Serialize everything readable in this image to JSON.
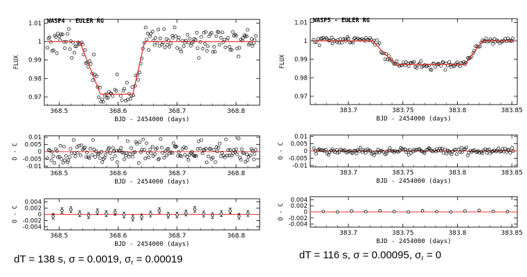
{
  "chart_data": [
    {
      "id": "wasp4-flux",
      "type": "scatter",
      "title": "WASP4 - EULER RG",
      "xlabel": "BJD - 2454000 (days)",
      "ylabel": "FLUX",
      "xlim": [
        368.475,
        368.84
      ],
      "ylim": [
        0.9655,
        1.012
      ],
      "xticks": [
        368.5,
        368.6,
        368.7,
        368.8
      ],
      "xticklabels": [
        "368.5",
        "368.6",
        "368.7",
        "368.8"
      ],
      "yticks": [
        0.97,
        0.98,
        0.99,
        1.0,
        1.01
      ],
      "yticklabels": [
        "0.97",
        "0.98",
        "0.99",
        "1",
        "1.01"
      ],
      "model": {
        "color": "#e8302a",
        "baseline": 1.0,
        "depth": 0.0285,
        "t1": 368.535,
        "t2": 368.57,
        "t3": 368.625,
        "t4": 368.645,
        "x_start": 368.48,
        "x_end": 368.835
      },
      "series": [
        {
          "name": "data",
          "x_start": 368.48,
          "x_end": 368.835,
          "n": 180,
          "scatter": 0.0035,
          "seed": 11
        }
      ]
    },
    {
      "id": "wasp4-resid",
      "type": "scatter",
      "ylabel": "O - C",
      "xlabel": "BJD - 2454000 (days)",
      "xlim": [
        368.475,
        368.84
      ],
      "ylim": [
        -0.011,
        0.011
      ],
      "xticks": [
        368.5,
        368.6,
        368.7,
        368.8
      ],
      "xticklabels": [
        "368.5",
        "368.6",
        "368.7",
        "368.8"
      ],
      "yticks": [
        -0.01,
        -0.005,
        0,
        0.005,
        0.01
      ],
      "yticklabels": [
        "-0.01",
        "-0.005",
        "0",
        "0.005",
        "0.01"
      ],
      "zero_line": 0,
      "series": [
        {
          "name": "residuals",
          "x_start": 368.48,
          "x_end": 368.835,
          "n": 180,
          "scatter": 0.0035,
          "seed": 23
        }
      ]
    },
    {
      "id": "wasp4-binned",
      "type": "scatter",
      "ylabel": "O - C",
      "xlabel": "BJD - 2454000 (days)",
      "xlim": [
        368.475,
        368.84
      ],
      "ylim": [
        -0.005,
        0.005
      ],
      "xticks": [
        368.5,
        368.6,
        368.7,
        368.8
      ],
      "xticklabels": [
        "368.5",
        "368.6",
        "368.7",
        "368.8"
      ],
      "yticks": [
        -0.004,
        -0.002,
        0,
        0.002,
        0.004
      ],
      "yticklabels": [
        "-0.004",
        "-0.002",
        "0",
        "0.002",
        "0.004"
      ],
      "zero_line": 0,
      "binned": {
        "x": [
          368.49,
          368.505,
          368.52,
          368.535,
          368.55,
          368.565,
          368.58,
          368.595,
          368.61,
          368.625,
          368.64,
          368.655,
          368.67,
          368.685,
          368.7,
          368.715,
          368.73,
          368.745,
          368.76,
          368.775,
          368.79,
          368.805,
          368.82
        ],
        "y": [
          -0.0006,
          0.0012,
          0.0015,
          0.0002,
          -0.0004,
          0.0008,
          0.0002,
          0.0006,
          -0.0002,
          -0.0012,
          -0.0008,
          0.0001,
          0.0012,
          -0.0003,
          -0.0002,
          0.0004,
          0.0016,
          0.0001,
          -0.0004,
          0.0002,
          0.0011,
          -0.0006,
          0.0003
        ],
        "err": 0.0009
      }
    },
    {
      "id": "wasp5-flux",
      "type": "scatter",
      "title": "WASP5 - EULER RG",
      "xlabel": "BJD - 2454000 (days)",
      "ylabel": "FLUX",
      "xlim": [
        383.665,
        383.855
      ],
      "ylim": [
        0.9655,
        1.012
      ],
      "xticks": [
        383.7,
        383.75,
        383.8,
        383.85
      ],
      "xticklabels": [
        "383.7",
        "383.75",
        "383.8",
        "383.85"
      ],
      "yticks": [
        0.97,
        0.98,
        0.99,
        1.0,
        1.01
      ],
      "yticklabels": [
        "0.97",
        "0.98",
        "0.99",
        "1",
        "1.01"
      ],
      "model": {
        "color": "#e8302a",
        "baseline": 1.0,
        "depth": 0.0128,
        "t1": 383.722,
        "t2": 383.743,
        "t3": 383.807,
        "t4": 383.823,
        "x_start": 383.668,
        "x_end": 383.852
      },
      "series": [
        {
          "name": "data",
          "x_start": 383.668,
          "x_end": 383.852,
          "n": 150,
          "scatter": 0.0012,
          "seed": 37
        }
      ]
    },
    {
      "id": "wasp5-resid",
      "type": "scatter",
      "ylabel": "O - C",
      "xlabel": "BJD - 2454000 (days)",
      "xlim": [
        383.665,
        383.855
      ],
      "ylim": [
        -0.011,
        0.011
      ],
      "xticks": [
        383.7,
        383.75,
        383.8,
        383.85
      ],
      "xticklabels": [
        "383.7",
        "383.75",
        "383.8",
        "383.85"
      ],
      "yticks": [
        -0.01,
        -0.005,
        0,
        0.005,
        0.01
      ],
      "yticklabels": [
        "-0.01",
        "-0.005",
        "0",
        "0.005",
        "0.01"
      ],
      "zero_line": 0,
      "series": [
        {
          "name": "residuals",
          "x_start": 383.668,
          "x_end": 383.852,
          "n": 150,
          "scatter": 0.0011,
          "seed": 53
        }
      ]
    },
    {
      "id": "wasp5-binned",
      "type": "scatter",
      "ylabel": "O - C",
      "xlabel": "BJD - 2454000 (days)",
      "xlim": [
        383.665,
        383.855
      ],
      "ylim": [
        -0.005,
        0.005
      ],
      "xticks": [
        383.7,
        383.75,
        383.8,
        383.85
      ],
      "xticklabels": [
        "383.7",
        "383.75",
        "383.8",
        "383.85"
      ],
      "yticks": [
        -0.004,
        -0.002,
        0,
        0.002,
        0.004
      ],
      "yticklabels": [
        "-0.004",
        "-0.002",
        "0",
        "0.002",
        "0.004"
      ],
      "zero_line": 0,
      "binned": {
        "x": [
          383.677,
          383.69,
          383.703,
          383.716,
          383.729,
          383.742,
          383.755,
          383.768,
          383.781,
          383.794,
          383.807,
          383.82,
          383.833,
          383.846
        ],
        "y": [
          0.0001,
          0.0,
          0.0003,
          0.0001,
          0.0004,
          0.0001,
          0.0,
          0.0004,
          0.0001,
          0.0,
          0.0003,
          0.0005,
          0.0002,
          0.0001
        ],
        "err": 0.0002
      }
    }
  ],
  "captions": {
    "left": {
      "prefix": "dT = 138 s, ",
      "sigma_symbol": "σ",
      "sigma_value": " = 0.0019,  ",
      "sigma_r_symbol": "σ",
      "sigma_r_sub": "r",
      "sigma_r_value": " = 0.00019"
    },
    "right": {
      "prefix": "dT = 116 s, ",
      "sigma_symbol": "σ",
      "sigma_value": " = 0.00095,  ",
      "sigma_r_symbol": "σ",
      "sigma_r_sub": "r",
      "sigma_r_value": " = 0"
    }
  }
}
